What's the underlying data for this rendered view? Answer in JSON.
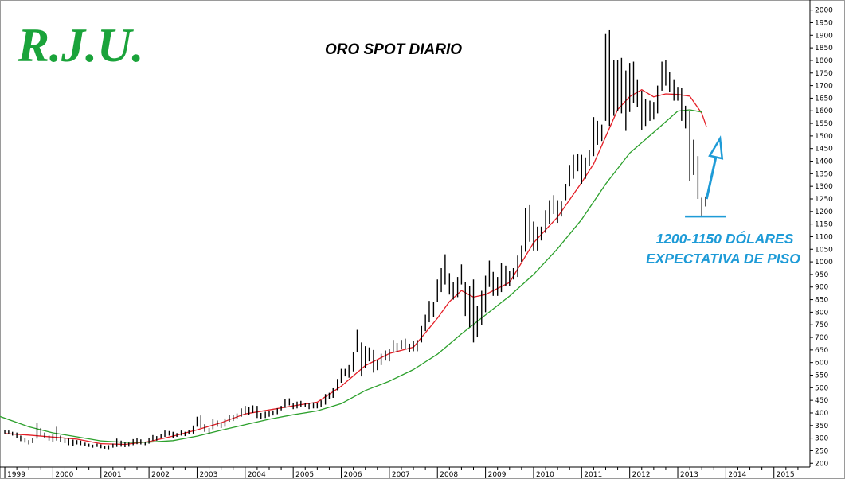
{
  "logo": {
    "text": "R.J.U."
  },
  "chart_data": {
    "type": "ohlc",
    "title": "ORO SPOT DIARIO",
    "xlabel": "",
    "ylabel": "",
    "ylim": [
      185,
      2040
    ],
    "x_range": [
      1998.9,
      2015.75
    ],
    "y_ticks": [
      200,
      250,
      300,
      350,
      400,
      450,
      500,
      550,
      600,
      650,
      700,
      750,
      800,
      850,
      900,
      950,
      1000,
      1050,
      1100,
      1150,
      1200,
      1250,
      1300,
      1350,
      1400,
      1450,
      1500,
      1550,
      1600,
      1650,
      1700,
      1750,
      1800,
      1850,
      1900,
      1950,
      2000
    ],
    "x_tick_labels": [
      "1999",
      "2000",
      "2001",
      "2002",
      "2003",
      "2004",
      "2005",
      "2006",
      "2007",
      "2008",
      "2009",
      "2010",
      "2011",
      "2012",
      "2013",
      "2014",
      "2015"
    ],
    "price_bars": [
      {
        "t": 1999.0,
        "h": 332,
        "l": 318
      },
      {
        "t": 1999.08,
        "h": 330,
        "l": 315
      },
      {
        "t": 1999.16,
        "h": 325,
        "l": 310
      },
      {
        "t": 1999.25,
        "h": 322,
        "l": 300
      },
      {
        "t": 1999.33,
        "h": 310,
        "l": 288
      },
      {
        "t": 1999.42,
        "h": 300,
        "l": 282
      },
      {
        "t": 1999.5,
        "h": 292,
        "l": 275
      },
      {
        "t": 1999.58,
        "h": 300,
        "l": 280
      },
      {
        "t": 1999.67,
        "h": 360,
        "l": 298
      },
      {
        "t": 1999.75,
        "h": 340,
        "l": 310
      },
      {
        "t": 1999.83,
        "h": 322,
        "l": 300
      },
      {
        "t": 1999.92,
        "h": 310,
        "l": 290
      },
      {
        "t": 2000.0,
        "h": 315,
        "l": 285
      },
      {
        "t": 2000.08,
        "h": 345,
        "l": 290
      },
      {
        "t": 2000.16,
        "h": 310,
        "l": 283
      },
      {
        "t": 2000.25,
        "h": 302,
        "l": 280
      },
      {
        "t": 2000.33,
        "h": 298,
        "l": 272
      },
      {
        "t": 2000.42,
        "h": 294,
        "l": 270
      },
      {
        "t": 2000.5,
        "h": 292,
        "l": 275
      },
      {
        "t": 2000.58,
        "h": 290,
        "l": 272
      },
      {
        "t": 2000.67,
        "h": 282,
        "l": 268
      },
      {
        "t": 2000.75,
        "h": 278,
        "l": 265
      },
      {
        "t": 2000.83,
        "h": 274,
        "l": 262
      },
      {
        "t": 2000.92,
        "h": 278,
        "l": 265
      },
      {
        "t": 2001.0,
        "h": 275,
        "l": 260
      },
      {
        "t": 2001.08,
        "h": 270,
        "l": 258
      },
      {
        "t": 2001.16,
        "h": 272,
        "l": 256
      },
      {
        "t": 2001.25,
        "h": 278,
        "l": 262
      },
      {
        "t": 2001.33,
        "h": 298,
        "l": 265
      },
      {
        "t": 2001.42,
        "h": 290,
        "l": 266
      },
      {
        "t": 2001.5,
        "h": 285,
        "l": 264
      },
      {
        "t": 2001.58,
        "h": 282,
        "l": 266
      },
      {
        "t": 2001.67,
        "h": 296,
        "l": 272
      },
      {
        "t": 2001.75,
        "h": 300,
        "l": 276
      },
      {
        "t": 2001.83,
        "h": 295,
        "l": 275
      },
      {
        "t": 2001.92,
        "h": 284,
        "l": 272
      },
      {
        "t": 2002.0,
        "h": 302,
        "l": 278
      },
      {
        "t": 2002.08,
        "h": 312,
        "l": 290
      },
      {
        "t": 2002.16,
        "h": 308,
        "l": 290
      },
      {
        "t": 2002.25,
        "h": 316,
        "l": 300
      },
      {
        "t": 2002.33,
        "h": 330,
        "l": 305
      },
      {
        "t": 2002.42,
        "h": 328,
        "l": 310
      },
      {
        "t": 2002.5,
        "h": 325,
        "l": 300
      },
      {
        "t": 2002.58,
        "h": 320,
        "l": 305
      },
      {
        "t": 2002.67,
        "h": 330,
        "l": 310
      },
      {
        "t": 2002.75,
        "h": 325,
        "l": 308
      },
      {
        "t": 2002.83,
        "h": 332,
        "l": 315
      },
      {
        "t": 2002.92,
        "h": 350,
        "l": 318
      },
      {
        "t": 2003.0,
        "h": 385,
        "l": 345
      },
      {
        "t": 2003.08,
        "h": 390,
        "l": 340
      },
      {
        "t": 2003.16,
        "h": 355,
        "l": 325
      },
      {
        "t": 2003.25,
        "h": 340,
        "l": 318
      },
      {
        "t": 2003.33,
        "h": 375,
        "l": 335
      },
      {
        "t": 2003.42,
        "h": 370,
        "l": 345
      },
      {
        "t": 2003.5,
        "h": 362,
        "l": 340
      },
      {
        "t": 2003.58,
        "h": 378,
        "l": 345
      },
      {
        "t": 2003.67,
        "h": 393,
        "l": 365
      },
      {
        "t": 2003.75,
        "h": 392,
        "l": 368
      },
      {
        "t": 2003.83,
        "h": 398,
        "l": 375
      },
      {
        "t": 2003.92,
        "h": 418,
        "l": 385
      },
      {
        "t": 2004.0,
        "h": 428,
        "l": 395
      },
      {
        "t": 2004.08,
        "h": 425,
        "l": 392
      },
      {
        "t": 2004.16,
        "h": 430,
        "l": 400
      },
      {
        "t": 2004.25,
        "h": 428,
        "l": 380
      },
      {
        "t": 2004.33,
        "h": 400,
        "l": 375
      },
      {
        "t": 2004.42,
        "h": 405,
        "l": 380
      },
      {
        "t": 2004.5,
        "h": 408,
        "l": 385
      },
      {
        "t": 2004.58,
        "h": 410,
        "l": 390
      },
      {
        "t": 2004.67,
        "h": 418,
        "l": 395
      },
      {
        "t": 2004.75,
        "h": 428,
        "l": 410
      },
      {
        "t": 2004.83,
        "h": 455,
        "l": 420
      },
      {
        "t": 2004.92,
        "h": 458,
        "l": 430
      },
      {
        "t": 2005.0,
        "h": 440,
        "l": 415
      },
      {
        "t": 2005.08,
        "h": 445,
        "l": 418
      },
      {
        "t": 2005.16,
        "h": 448,
        "l": 425
      },
      {
        "t": 2005.25,
        "h": 440,
        "l": 422
      },
      {
        "t": 2005.33,
        "h": 438,
        "l": 415
      },
      {
        "t": 2005.42,
        "h": 442,
        "l": 418
      },
      {
        "t": 2005.5,
        "h": 440,
        "l": 418
      },
      {
        "t": 2005.58,
        "h": 450,
        "l": 425
      },
      {
        "t": 2005.67,
        "h": 475,
        "l": 433
      },
      {
        "t": 2005.75,
        "h": 480,
        "l": 455
      },
      {
        "t": 2005.83,
        "h": 498,
        "l": 460
      },
      {
        "t": 2005.92,
        "h": 535,
        "l": 490
      },
      {
        "t": 2006.0,
        "h": 575,
        "l": 520
      },
      {
        "t": 2006.08,
        "h": 575,
        "l": 545
      },
      {
        "t": 2006.16,
        "h": 590,
        "l": 540
      },
      {
        "t": 2006.25,
        "h": 640,
        "l": 565
      },
      {
        "t": 2006.33,
        "h": 730,
        "l": 640
      },
      {
        "t": 2006.42,
        "h": 680,
        "l": 545
      },
      {
        "t": 2006.5,
        "h": 665,
        "l": 580
      },
      {
        "t": 2006.58,
        "h": 660,
        "l": 605
      },
      {
        "t": 2006.67,
        "h": 650,
        "l": 560
      },
      {
        "t": 2006.75,
        "h": 610,
        "l": 570
      },
      {
        "t": 2006.83,
        "h": 635,
        "l": 590
      },
      {
        "t": 2006.92,
        "h": 648,
        "l": 608
      },
      {
        "t": 2007.0,
        "h": 655,
        "l": 605
      },
      {
        "t": 2007.08,
        "h": 690,
        "l": 640
      },
      {
        "t": 2007.16,
        "h": 678,
        "l": 640
      },
      {
        "t": 2007.25,
        "h": 690,
        "l": 655
      },
      {
        "t": 2007.33,
        "h": 695,
        "l": 655
      },
      {
        "t": 2007.42,
        "h": 675,
        "l": 640
      },
      {
        "t": 2007.5,
        "h": 685,
        "l": 645
      },
      {
        "t": 2007.58,
        "h": 690,
        "l": 645
      },
      {
        "t": 2007.67,
        "h": 745,
        "l": 680
      },
      {
        "t": 2007.75,
        "h": 790,
        "l": 725
      },
      {
        "t": 2007.83,
        "h": 845,
        "l": 760
      },
      {
        "t": 2007.92,
        "h": 840,
        "l": 780
      },
      {
        "t": 2008.0,
        "h": 930,
        "l": 840
      },
      {
        "t": 2008.08,
        "h": 975,
        "l": 880
      },
      {
        "t": 2008.16,
        "h": 1030,
        "l": 910
      },
      {
        "t": 2008.25,
        "h": 955,
        "l": 870
      },
      {
        "t": 2008.33,
        "h": 920,
        "l": 850
      },
      {
        "t": 2008.42,
        "h": 940,
        "l": 860
      },
      {
        "t": 2008.5,
        "h": 990,
        "l": 910
      },
      {
        "t": 2008.58,
        "h": 920,
        "l": 785
      },
      {
        "t": 2008.67,
        "h": 905,
        "l": 740
      },
      {
        "t": 2008.75,
        "h": 930,
        "l": 680
      },
      {
        "t": 2008.83,
        "h": 825,
        "l": 700
      },
      {
        "t": 2008.92,
        "h": 885,
        "l": 750
      },
      {
        "t": 2009.0,
        "h": 945,
        "l": 800
      },
      {
        "t": 2009.08,
        "h": 1005,
        "l": 900
      },
      {
        "t": 2009.16,
        "h": 960,
        "l": 865
      },
      {
        "t": 2009.25,
        "h": 940,
        "l": 865
      },
      {
        "t": 2009.33,
        "h": 995,
        "l": 880
      },
      {
        "t": 2009.42,
        "h": 985,
        "l": 905
      },
      {
        "t": 2009.5,
        "h": 965,
        "l": 905
      },
      {
        "t": 2009.58,
        "h": 975,
        "l": 930
      },
      {
        "t": 2009.67,
        "h": 1025,
        "l": 940
      },
      {
        "t": 2009.75,
        "h": 1065,
        "l": 1000
      },
      {
        "t": 2009.83,
        "h": 1215,
        "l": 1040
      },
      {
        "t": 2009.92,
        "h": 1225,
        "l": 1080
      },
      {
        "t": 2010.0,
        "h": 1160,
        "l": 1045
      },
      {
        "t": 2010.08,
        "h": 1140,
        "l": 1045
      },
      {
        "t": 2010.16,
        "h": 1140,
        "l": 1085
      },
      {
        "t": 2010.25,
        "h": 1205,
        "l": 1115
      },
      {
        "t": 2010.33,
        "h": 1245,
        "l": 1150
      },
      {
        "t": 2010.42,
        "h": 1265,
        "l": 1190
      },
      {
        "t": 2010.5,
        "h": 1245,
        "l": 1155
      },
      {
        "t": 2010.58,
        "h": 1240,
        "l": 1180
      },
      {
        "t": 2010.67,
        "h": 1310,
        "l": 1245
      },
      {
        "t": 2010.75,
        "h": 1385,
        "l": 1300
      },
      {
        "t": 2010.83,
        "h": 1425,
        "l": 1330
      },
      {
        "t": 2010.92,
        "h": 1430,
        "l": 1360
      },
      {
        "t": 2011.0,
        "h": 1425,
        "l": 1310
      },
      {
        "t": 2011.08,
        "h": 1415,
        "l": 1330
      },
      {
        "t": 2011.16,
        "h": 1445,
        "l": 1380
      },
      {
        "t": 2011.25,
        "h": 1575,
        "l": 1420
      },
      {
        "t": 2011.33,
        "h": 1560,
        "l": 1465
      },
      {
        "t": 2011.42,
        "h": 1545,
        "l": 1480
      },
      {
        "t": 2011.5,
        "h": 1905,
        "l": 1560
      },
      {
        "t": 2011.58,
        "h": 1920,
        "l": 1540
      },
      {
        "t": 2011.67,
        "h": 1800,
        "l": 1580
      },
      {
        "t": 2011.75,
        "h": 1800,
        "l": 1600
      },
      {
        "t": 2011.83,
        "h": 1810,
        "l": 1590
      },
      {
        "t": 2011.92,
        "h": 1760,
        "l": 1520
      },
      {
        "t": 2012.0,
        "h": 1790,
        "l": 1595
      },
      {
        "t": 2012.08,
        "h": 1795,
        "l": 1630
      },
      {
        "t": 2012.16,
        "h": 1725,
        "l": 1615
      },
      {
        "t": 2012.25,
        "h": 1680,
        "l": 1525
      },
      {
        "t": 2012.33,
        "h": 1645,
        "l": 1540
      },
      {
        "t": 2012.42,
        "h": 1640,
        "l": 1560
      },
      {
        "t": 2012.5,
        "h": 1635,
        "l": 1565
      },
      {
        "t": 2012.58,
        "h": 1700,
        "l": 1590
      },
      {
        "t": 2012.67,
        "h": 1795,
        "l": 1680
      },
      {
        "t": 2012.75,
        "h": 1800,
        "l": 1700
      },
      {
        "t": 2012.83,
        "h": 1755,
        "l": 1675
      },
      {
        "t": 2012.92,
        "h": 1725,
        "l": 1640
      },
      {
        "t": 2013.0,
        "h": 1695,
        "l": 1640
      },
      {
        "t": 2013.08,
        "h": 1690,
        "l": 1560
      },
      {
        "t": 2013.16,
        "h": 1620,
        "l": 1530
      },
      {
        "t": 2013.25,
        "h": 1600,
        "l": 1320
      },
      {
        "t": 2013.33,
        "h": 1485,
        "l": 1345
      },
      {
        "t": 2013.42,
        "h": 1420,
        "l": 1250
      },
      {
        "t": 2013.5,
        "h": 1255,
        "l": 1180
      },
      {
        "t": 2013.58,
        "h": 1260,
        "l": 1220
      }
    ],
    "series": [
      {
        "color": "#e41e26",
        "x": [
          1999.0,
          1999.5,
          2000.0,
          2000.5,
          2001.0,
          2001.5,
          2002.0,
          2002.5,
          2003.0,
          2003.5,
          2004.0,
          2004.5,
          2005.0,
          2005.5,
          2006.0,
          2006.5,
          2007.0,
          2007.5,
          2008.0,
          2008.25,
          2008.5,
          2008.75,
          2009.0,
          2009.5,
          2010.0,
          2010.5,
          2011.0,
          2011.25,
          2011.5,
          2011.75,
          2012.0,
          2012.25,
          2012.5,
          2012.75,
          2013.0,
          2013.25,
          2013.5,
          2013.6
        ],
        "y": [
          318,
          312,
          304,
          296,
          278,
          275,
          286,
          308,
          333,
          361,
          396,
          412,
          428,
          443,
          506,
          588,
          636,
          661,
          776,
          842,
          886,
          860,
          870,
          918,
          1076,
          1178,
          1315,
          1389,
          1497,
          1605,
          1656,
          1684,
          1655,
          1667,
          1665,
          1658,
          1590,
          1535
        ]
      },
      {
        "color": "#2ca02c",
        "x": [
          1998.9,
          1999.5,
          2000.0,
          2000.5,
          2001.0,
          2001.5,
          2002.0,
          2002.5,
          2003.0,
          2003.5,
          2004.0,
          2004.5,
          2005.0,
          2005.5,
          2006.0,
          2006.5,
          2007.0,
          2007.5,
          2008.0,
          2008.5,
          2009.0,
          2009.5,
          2010.0,
          2010.5,
          2011.0,
          2011.5,
          2012.0,
          2012.5,
          2013.0,
          2013.25,
          2013.5
        ],
        "y": [
          386,
          345,
          321,
          305,
          289,
          283,
          284,
          290,
          308,
          331,
          353,
          375,
          393,
          408,
          437,
          489,
          526,
          572,
          633,
          714,
          789,
          864,
          950,
          1052,
          1168,
          1309,
          1432,
          1514,
          1599,
          1604,
          1595
        ]
      }
    ],
    "annotations": {
      "note_line1": "1200-1150 DÓLARES",
      "note_line2": "EXPECTATIVA DE PISO",
      "floor_value": 1180,
      "floor_from": 2013.15,
      "floor_to": 2014.0,
      "arrow_from": [
        2013.6,
        1250
      ],
      "arrow_to": [
        2013.88,
        1490
      ]
    },
    "colors": {
      "bars": "#000000",
      "ma_short": "#e41e26",
      "ma_long": "#2ca02c",
      "annotation": "#1e9bd7",
      "logo": "#1aa33a"
    }
  }
}
